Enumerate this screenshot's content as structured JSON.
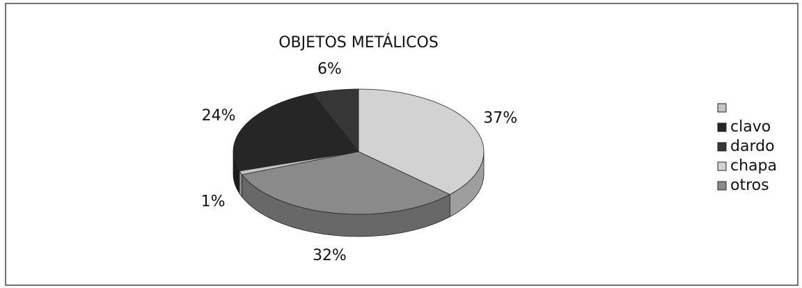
{
  "chart_data": {
    "type": "pie",
    "title": "OBJETOS METÁLICOS",
    "categories": [
      null,
      "clavo",
      "dardo",
      "chapa",
      "otros"
    ],
    "values": [
      1,
      24,
      6,
      37,
      32
    ],
    "value_labels": [
      "1%",
      "24%",
      "6%",
      "37%",
      "32%"
    ],
    "colors": [
      "#c4c4c4",
      "#262626",
      "#363636",
      "#d2d2d2",
      "#8a8a8a"
    ],
    "legend": "right"
  }
}
